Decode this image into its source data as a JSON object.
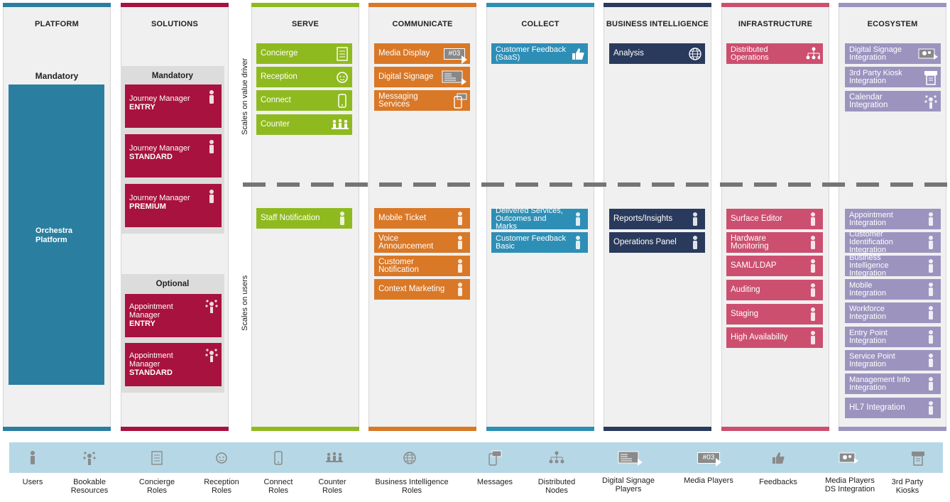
{
  "columns": [
    {
      "title": "PLATFORM",
      "color": "#2a7fa0"
    },
    {
      "title": "SOLUTIONS",
      "color": "#a8123e"
    },
    {
      "title": "SERVE",
      "color": "#8fba1f"
    },
    {
      "title": "COMMUNICATE",
      "color": "#d97827"
    },
    {
      "title": "COLLECT",
      "color": "#2e8fb6"
    },
    {
      "title": "BUSINESS INTELLIGENCE",
      "color": "#2a3a5c"
    },
    {
      "title": "INFRASTRUCTURE",
      "color": "#cc4f6f"
    },
    {
      "title": "ECOSYSTEM",
      "color": "#9c94bf"
    }
  ],
  "platform": {
    "mandatory_label": "Mandatory",
    "box_line1": "Orchestra",
    "box_line2": "Platform"
  },
  "solutions": {
    "mandatory_label": "Mandatory",
    "optional_label": "Optional",
    "mandatory_items": [
      {
        "line1": "Journey Manager",
        "line2": "ENTRY"
      },
      {
        "line1": "Journey Manager",
        "line2": "STANDARD"
      },
      {
        "line1": "Journey Manager",
        "line2": "PREMIUM"
      }
    ],
    "optional_items": [
      {
        "line1": "Appointment",
        "line1b": "Manager",
        "line2": "ENTRY"
      },
      {
        "line1": "Appointment",
        "line1b": "Manager",
        "line2": "STANDARD"
      }
    ]
  },
  "side_labels": {
    "top": "Scales on value driver",
    "bottom": "Scales on users"
  },
  "serve": {
    "top": [
      "Concierge",
      "Reception",
      "Connect",
      "Counter"
    ],
    "bottom": [
      "Staff Notification"
    ]
  },
  "communicate": {
    "top": [
      "Media Display",
      "Digital Signage",
      "Messaging Services"
    ],
    "bottom": [
      "Mobile Ticket",
      "Voice Announcement",
      "Customer Notification",
      "Context Marketing"
    ],
    "media_badge": "#03"
  },
  "collect": {
    "top": [
      {
        "line1": "Customer Feedback",
        "line2": "(SaaS)"
      }
    ],
    "bottom": [
      {
        "line1": "Delivered Services,",
        "line2": "Outcomes and Marks"
      },
      {
        "line1": "Customer Feedback",
        "line2": "Basic"
      }
    ]
  },
  "bi": {
    "top": [
      "Analysis"
    ],
    "bottom": [
      "Reports/Insights",
      "Operations Panel"
    ]
  },
  "infrastructure": {
    "top": [
      {
        "line1": "Distributed",
        "line2": "Operations"
      }
    ],
    "bottom": [
      "Surface Editor",
      "Hardware Monitoring",
      "SAML/LDAP",
      "Auditing",
      "Staging",
      "High Availability"
    ]
  },
  "ecosystem": {
    "top": [
      {
        "line1": "Digital Signage",
        "line2": "Integration"
      },
      {
        "line1": "3rd Party Kiosk",
        "line2": "Integration"
      },
      {
        "line1": "Calendar Integration",
        "line2": ""
      }
    ],
    "bottom": [
      {
        "line1": "Appointment",
        "line2": "Integration"
      },
      {
        "line1": "Customer Identification",
        "line2": "Integration"
      },
      {
        "line1": "Business Intelligence",
        "line2": "Integration"
      },
      {
        "line1": "Mobile",
        "line2": "Integration"
      },
      {
        "line1": "Workforce",
        "line2": "Integration"
      },
      {
        "line1": "Entry Point",
        "line2": "Integration"
      },
      {
        "line1": "Service Point",
        "line2": "Integration"
      },
      {
        "line1": "Management Info",
        "line2": "Integration"
      },
      {
        "line1": "HL7 Integration",
        "line2": ""
      }
    ]
  },
  "legend": [
    {
      "icon": "user-icon",
      "line1": "Users",
      "line2": ""
    },
    {
      "icon": "resource-icon",
      "line1": "Bookable",
      "line2": "Resources"
    },
    {
      "icon": "document-icon",
      "line1": "Concierge",
      "line2": "Roles"
    },
    {
      "icon": "face-icon",
      "line1": "Reception",
      "line2": "Roles"
    },
    {
      "icon": "phone-icon",
      "line1": "Connect",
      "line2": "Roles"
    },
    {
      "icon": "group-icon",
      "line1": "Counter",
      "line2": "Roles"
    },
    {
      "icon": "globe-icon",
      "line1": "Business Intelligence",
      "line2": "Roles"
    },
    {
      "icon": "message-icon",
      "line1": "Messages",
      "line2": ""
    },
    {
      "icon": "nodes-icon",
      "line1": "Distributed",
      "line2": "Nodes"
    },
    {
      "icon": "signage-icon",
      "line1": "Digital Signage",
      "line2": "Players"
    },
    {
      "icon": "media-player-icon",
      "line1": "Media Players",
      "line2": ""
    },
    {
      "icon": "thumbs-up-icon",
      "line1": "Feedbacks",
      "line2": ""
    },
    {
      "icon": "ds-integration-icon",
      "line1": "Media Players",
      "line2": "DS Integration"
    },
    {
      "icon": "kiosk-icon",
      "line1": "3rd Party",
      "line2": "Kiosks"
    }
  ]
}
